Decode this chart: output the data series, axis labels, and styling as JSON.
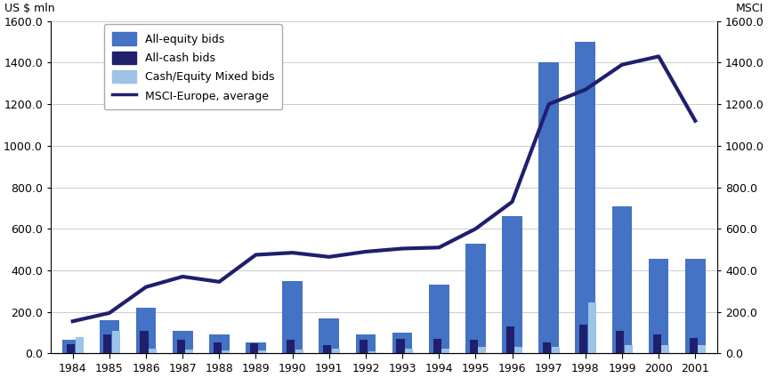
{
  "years": [
    1984,
    1985,
    1986,
    1987,
    1988,
    1989,
    1990,
    1991,
    1992,
    1993,
    1994,
    1995,
    1996,
    1997,
    1998,
    1999,
    2000,
    2001
  ],
  "all_equity": [
    65,
    160,
    220,
    110,
    90,
    55,
    350,
    170,
    90,
    100,
    330,
    530,
    660,
    1400,
    1500,
    710,
    455,
    455
  ],
  "all_cash": [
    45,
    90,
    110,
    65,
    55,
    50,
    65,
    40,
    65,
    70,
    70,
    65,
    130,
    55,
    140,
    110,
    90,
    75
  ],
  "mixed": [
    80,
    110,
    25,
    20,
    15,
    15,
    20,
    25,
    10,
    25,
    25,
    30,
    30,
    30,
    245,
    40,
    40,
    40
  ],
  "msci": [
    155,
    195,
    320,
    370,
    345,
    475,
    485,
    465,
    490,
    505,
    510,
    600,
    730,
    1200,
    1270,
    1390,
    1430,
    1120
  ],
  "msci_scale": 1600,
  "bar_ylim": [
    0,
    1600
  ],
  "bar_yticks": [
    0.0,
    200.0,
    400.0,
    600.0,
    800.0,
    1000.0,
    1200.0,
    1400.0,
    1600.0
  ],
  "msci_yticks": [
    0.0,
    200.0,
    400.0,
    600.0,
    800.0,
    1000.0,
    1200.0,
    1400.0,
    1600.0
  ],
  "color_equity": "#4472C4",
  "color_cash": "#1F1F6E",
  "color_mixed": "#9DC3E6",
  "color_msci": "#1F1F6E",
  "ylabel_left": "US $ mln",
  "ylabel_right": "MSCI",
  "legend_equity": "All-equity bids",
  "legend_cash": "All-cash bids",
  "legend_mixed": "Cash/Equity Mixed bids",
  "legend_msci": "MSCI-Europe, average",
  "background_color": "#FFFFFF",
  "grid_color": "#CCCCCC",
  "tick_fontsize": 9,
  "legend_fontsize": 9
}
